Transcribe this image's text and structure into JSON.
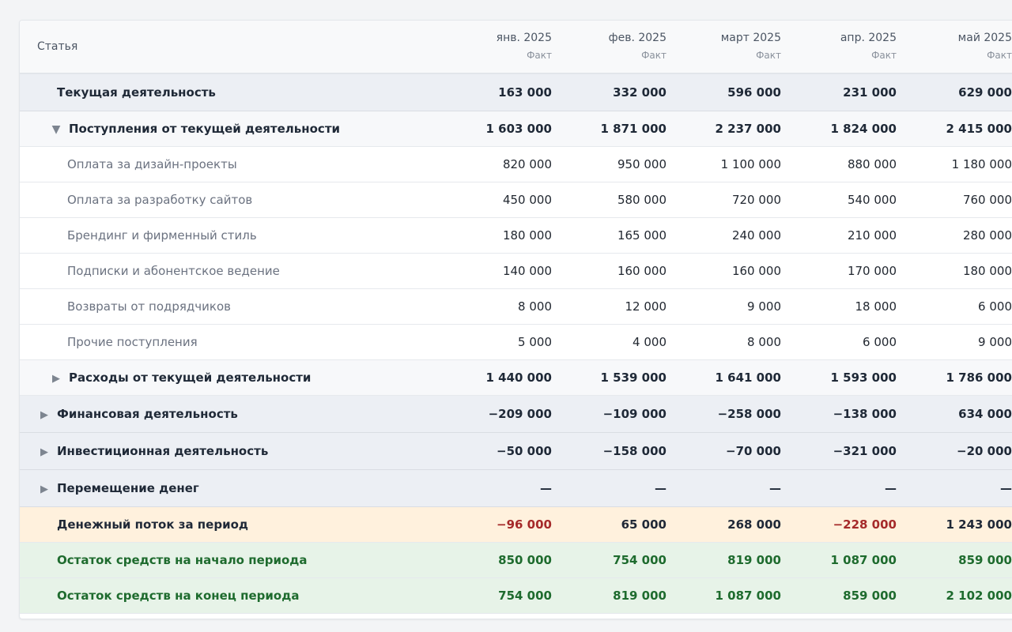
{
  "table": {
    "header": {
      "label": "Статья",
      "months": [
        {
          "name": "янв. 2025",
          "sub": "Факт"
        },
        {
          "name": "фев. 2025",
          "sub": "Факт"
        },
        {
          "name": "март 2025",
          "sub": "Факт"
        },
        {
          "name": "апр. 2025",
          "sub": "Факт"
        },
        {
          "name": "май 2025",
          "sub": "Факт"
        }
      ]
    },
    "rows": [
      {
        "label": "Текущая деятельность",
        "values": [
          "163 000",
          "332 000",
          "596 000",
          "231 000",
          "629 000"
        ]
      },
      {
        "label": "Поступления от текущей деятельности",
        "values": [
          "1 603 000",
          "1 871 000",
          "2 237 000",
          "1 824 000",
          "2 415 000"
        ]
      },
      {
        "label": "Оплата за дизайн-проекты",
        "values": [
          "820 000",
          "950 000",
          "1 100 000",
          "880 000",
          "1 180 000"
        ]
      },
      {
        "label": "Оплата за разработку сайтов",
        "values": [
          "450 000",
          "580 000",
          "720 000",
          "540 000",
          "760 000"
        ]
      },
      {
        "label": "Брендинг и фирменный стиль",
        "values": [
          "180 000",
          "165 000",
          "240 000",
          "210 000",
          "280 000"
        ]
      },
      {
        "label": "Подписки и абонентское ведение",
        "values": [
          "140 000",
          "160 000",
          "160 000",
          "170 000",
          "180 000"
        ]
      },
      {
        "label": "Возвраты от подрядчиков",
        "values": [
          "8 000",
          "12 000",
          "9 000",
          "18 000",
          "6 000"
        ]
      },
      {
        "label": "Прочие поступления",
        "values": [
          "5 000",
          "4 000",
          "8 000",
          "6 000",
          "9 000"
        ]
      },
      {
        "label": "Расходы от текущей деятельности",
        "values": [
          "1 440 000",
          "1 539 000",
          "1 641 000",
          "1 593 000",
          "1 786 000"
        ]
      },
      {
        "label": "Финансовая деятельность",
        "values": [
          "−209 000",
          "−109 000",
          "−258 000",
          "−138 000",
          "634 000"
        ]
      },
      {
        "label": "Инвестиционная деятельность",
        "values": [
          "−50 000",
          "−158 000",
          "−70 000",
          "−321 000",
          "−20 000"
        ]
      },
      {
        "label": "Перемещение денег",
        "values": [
          "—",
          "—",
          "—",
          "—",
          "—"
        ]
      },
      {
        "label": "Денежный поток за период",
        "values": [
          "−96 000",
          "65 000",
          "268 000",
          "−228 000",
          "1 243 000"
        ]
      },
      {
        "label": "Остаток средств на начало периода",
        "values": [
          "850 000",
          "754 000",
          "819 000",
          "1 087 000",
          "859 000"
        ]
      },
      {
        "label": "Остаток средств на конец периода",
        "values": [
          "754 000",
          "819 000",
          "1 087 000",
          "859 000",
          "2 102 000"
        ]
      }
    ]
  },
  "colors": {
    "section_bg": "#eceff4",
    "flow_bg": "#fff1dd",
    "balance_bg": "#e7f3e8",
    "balance_text": "#1e6b2e",
    "negative_text": "#a52a2a"
  },
  "icons": {
    "expanded": "triangle-down-icon",
    "collapsed": "triangle-right-icon"
  }
}
